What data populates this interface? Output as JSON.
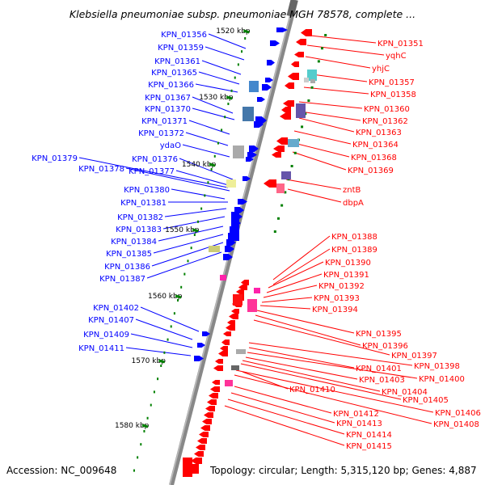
{
  "title": "Klebsiella pneumoniae subsp. pneumoniae MGH 78578, complete ...",
  "accession": "Accession: NC_009648",
  "summary": "Topology: circular; Length: 5,315,120 bp; Genes: 4,887",
  "colors": {
    "forward_strand": "#ff0000",
    "reverse_strand": "#0000ff",
    "backbone": "#888888",
    "scale_ticks": "#008000"
  },
  "scale_labels": [
    "1520 kbp",
    "1530 kbp",
    "1540 kbp",
    "1550 kbp",
    "1560 kbp",
    "1570 kbp",
    "1580 kbp"
  ],
  "reverse_genes": [
    "KPN_01356",
    "KPN_01359",
    "KPN_01361",
    "KPN_01365",
    "KPN_01366",
    "KPN_01367",
    "KPN_01370",
    "KPN_01371",
    "KPN_01372",
    "ydaO",
    "KPN_01376",
    "KPN_01379",
    "KPN_01378",
    "KPN_01377",
    "KPN_01380",
    "KPN_01381",
    "KPN_01382",
    "KPN_01383",
    "KPN_01384",
    "KPN_01385",
    "KPN_01386",
    "KPN_01387",
    "KPN_01402",
    "KPN_01407",
    "KPN_01409",
    "KPN_01411"
  ],
  "forward_genes": [
    "KPN_01351",
    "yqhC",
    "yhjC",
    "KPN_01357",
    "KPN_01358",
    "KPN_01360",
    "KPN_01362",
    "KPN_01363",
    "KPN_01364",
    "KPN_01368",
    "KPN_01369",
    "zntB",
    "dbpA",
    "KPN_01388",
    "KPN_01389",
    "KPN_01390",
    "KPN_01391",
    "KPN_01392",
    "KPN_01393",
    "KPN_01394",
    "KPN_01395",
    "KPN_01396",
    "KPN_01397",
    "KPN_01398",
    "KPN_01401",
    "KPN_01400",
    "KPN_01403",
    "KPN_01404",
    "KPN_01405",
    "KPN_01410",
    "KPN_01406",
    "KPN_01408",
    "KPN_01412",
    "KPN_01413",
    "KPN_01414",
    "KPN_01415"
  ]
}
